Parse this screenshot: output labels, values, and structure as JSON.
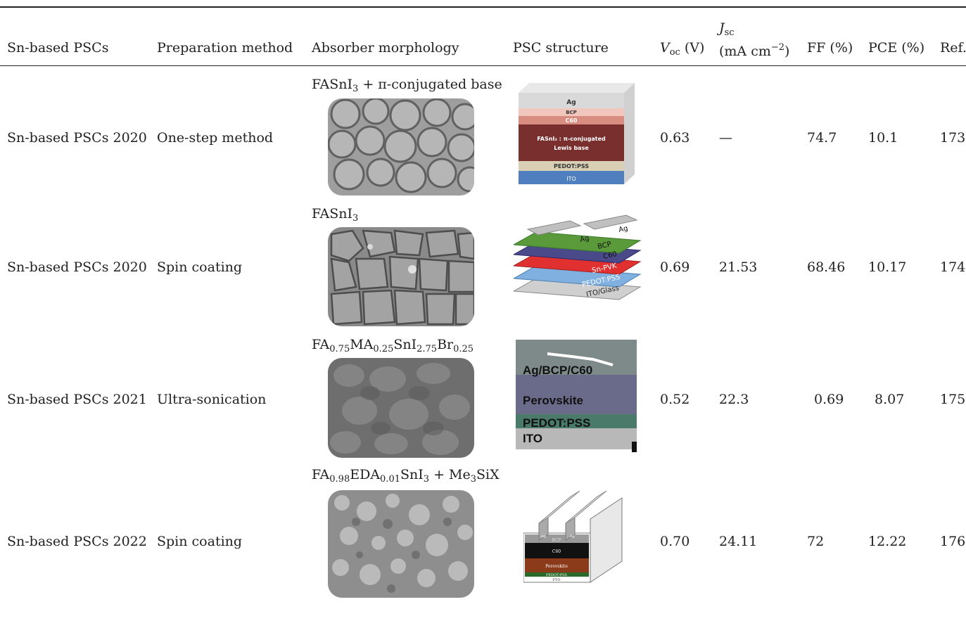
{
  "headers": {
    "c1": "Sn-based PSCs",
    "c2": "Preparation method",
    "c3": "Absorber morphology",
    "c4": "PSC structure",
    "c5_sym": "V",
    "c5_sub": "oc",
    "c5_unit": " (V)",
    "c6_sym": "J",
    "c6_sub": "sc",
    "c6_unit_a": "(mA cm",
    "c6_unit_sup": "−2",
    "c6_unit_b": ")",
    "c7": "FF (%)",
    "c8": "PCE (%)",
    "c9": "Ref."
  },
  "rows": [
    {
      "psc": "Sn-based PSCs 2020",
      "method": "One-step method",
      "voc": "0.63",
      "jsc": "—",
      "ff": "74.7",
      "pce": "10.1",
      "ref": "173",
      "label_parts": [
        {
          "t": "FASnI",
          "s": "n"
        },
        {
          "t": "3",
          "s": "sub"
        },
        {
          "t": " + π-conjugated base",
          "s": "n"
        }
      ],
      "stack": [
        "Ag",
        "BCP",
        "C60",
        "FASnI₃ : π-conjugated",
        "Lewis base",
        "PEDOT:PSS",
        "ITO"
      ]
    },
    {
      "psc": "Sn-based PSCs 2020",
      "method": "Spin coating",
      "voc": "0.69",
      "jsc": "21.53",
      "ff": "68.46",
      "pce": "10.17",
      "ref": "174",
      "label_parts": [
        {
          "t": "FASnI",
          "s": "n"
        },
        {
          "t": "3",
          "s": "sub"
        }
      ],
      "stack": [
        "Ag",
        "Ag",
        "BCP",
        "C60",
        "Sn-PVK",
        "PEDOT:PSS",
        "ITO/Glass"
      ]
    },
    {
      "psc": "Sn-based PSCs 2021",
      "method": "Ultra-sonication",
      "voc": "0.52",
      "jsc": "22.3",
      "ff": "0.69",
      "pce": "8.07",
      "ref": "175",
      "label_parts": [
        {
          "t": "FA",
          "s": "n"
        },
        {
          "t": "0.75",
          "s": "sub"
        },
        {
          "t": "MA",
          "s": "n"
        },
        {
          "t": "0.25",
          "s": "sub"
        },
        {
          "t": "SnI",
          "s": "n"
        },
        {
          "t": "2.75",
          "s": "sub"
        },
        {
          "t": "Br",
          "s": "n"
        },
        {
          "t": "0.25",
          "s": "sub"
        }
      ],
      "stack": [
        "Ag/BCP/C60",
        "Perovskite",
        "PEDOT:PSS",
        "ITO"
      ]
    },
    {
      "psc": "Sn-based PSCs 2022",
      "method": "Spin coating",
      "voc": "0.70",
      "jsc": "24.11",
      "ff": "72",
      "pce": "12.22",
      "ref": "176",
      "label_parts": [
        {
          "t": "FA",
          "s": "n"
        },
        {
          "t": "0.98",
          "s": "sub"
        },
        {
          "t": "EDA",
          "s": "n"
        },
        {
          "t": "0.01",
          "s": "sub"
        },
        {
          "t": "SnI",
          "s": "n"
        },
        {
          "t": "3",
          "s": "sub"
        },
        {
          "t": " + Me",
          "s": "n"
        },
        {
          "t": "3",
          "s": "sub"
        },
        {
          "t": "SiX",
          "s": "n"
        }
      ],
      "stack": [
        "Ag",
        "Ag",
        "BCP",
        "C60",
        "Perovskite",
        "PEDOT:PSS",
        "FTO"
      ]
    }
  ]
}
